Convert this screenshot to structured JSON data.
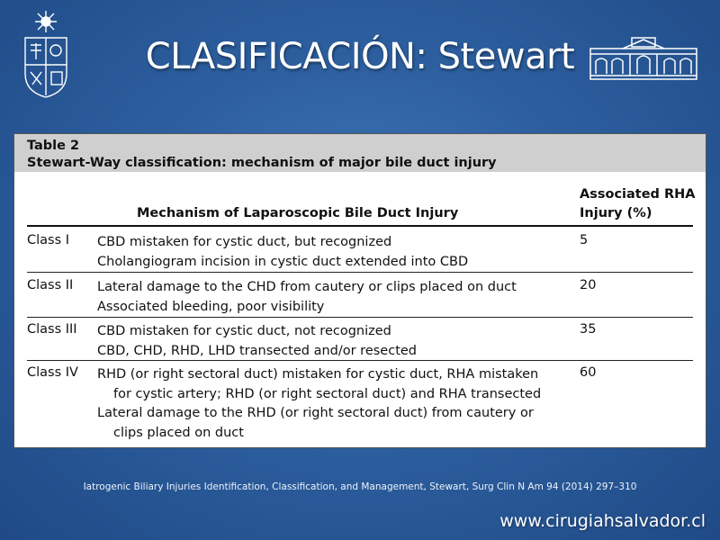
{
  "slide": {
    "title": "CLASIFICACIÓN: Stewart",
    "citation": "Iatrogenic Biliary Injuries Identification, Classification, and Management, Stewart, Surg Clin N Am 94 (2014) 297–310",
    "website": "www.cirugiahsalvador.cl"
  },
  "table": {
    "label": "Table 2",
    "caption": "Stewart-Way classification: mechanism of major bile duct injury",
    "col_mechanism": "Mechanism of Laparoscopic Bile Duct Injury",
    "col_rha_line1": "Associated RHA",
    "col_rha_line2": "Injury (%)",
    "rows": [
      {
        "cls": "Class I",
        "pct": "5",
        "lines": [
          "CBD mistaken for cystic duct, but recognized",
          "Cholangiogram incision in cystic duct extended into CBD"
        ]
      },
      {
        "cls": "Class II",
        "pct": "20",
        "lines": [
          "Lateral damage to the CHD from cautery or clips placed on duct",
          "Associated bleeding, poor visibility"
        ]
      },
      {
        "cls": "Class III",
        "pct": "35",
        "lines": [
          "CBD mistaken for cystic duct, not recognized",
          "CBD, CHD, RHD, LHD transected and/or resected"
        ]
      },
      {
        "cls": "Class IV",
        "pct": "60",
        "lines": [
          "RHD (or right sectoral duct) mistaken for cystic duct, RHA mistaken",
          "for cystic artery; RHD (or right sectoral duct) and RHA transected",
          "Lateral damage to the RHD (or right sectoral duct) from cautery or",
          "clips placed on duct"
        ]
      }
    ]
  },
  "colors": {
    "background": "#2d5f9f",
    "caption_band": "#cfcfcf"
  },
  "icons": {
    "left_logo": "university-crest-icon",
    "right_logo": "hospital-building-icon"
  }
}
